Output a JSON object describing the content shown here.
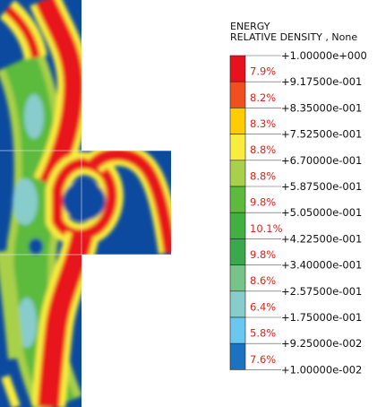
{
  "legend": {
    "title_line1": "ENERGY",
    "title_line2": "RELATIVE DENSITY , None",
    "levels": [
      {
        "label": "+1.00000e+000",
        "color": "#e8121e"
      },
      {
        "label": "+9.17500e-001",
        "color": "#f0501e"
      },
      {
        "label": "+8.35000e-001",
        "color": "#ffcc00"
      },
      {
        "label": "+7.52500e-001",
        "color": "#f8ec3c"
      },
      {
        "label": "+6.70000e-001",
        "color": "#a8d04a"
      },
      {
        "label": "+5.87500e-001",
        "color": "#5cba3c"
      },
      {
        "label": "+5.05000e-001",
        "color": "#42b040"
      },
      {
        "label": "+4.22500e-001",
        "color": "#3aa84c"
      },
      {
        "label": "+3.40000e-001",
        "color": "#78c488"
      },
      {
        "label": "+2.57500e-001",
        "color": "#88cccc"
      },
      {
        "label": "+1.75000e-001",
        "color": "#6ac8f0"
      },
      {
        "label": "+9.25000e-002",
        "color": "#1a72c0"
      },
      {
        "label": "+1.00000e-002",
        "color": "#0c4aa0"
      }
    ],
    "percentages": [
      "7.9%",
      "8.2%",
      "8.3%",
      "8.8%",
      "8.8%",
      "9.8%",
      "10.1%",
      "9.8%",
      "8.6%",
      "6.4%",
      "5.8%",
      "7.6%"
    ],
    "percent_color": "#d8261e"
  }
}
